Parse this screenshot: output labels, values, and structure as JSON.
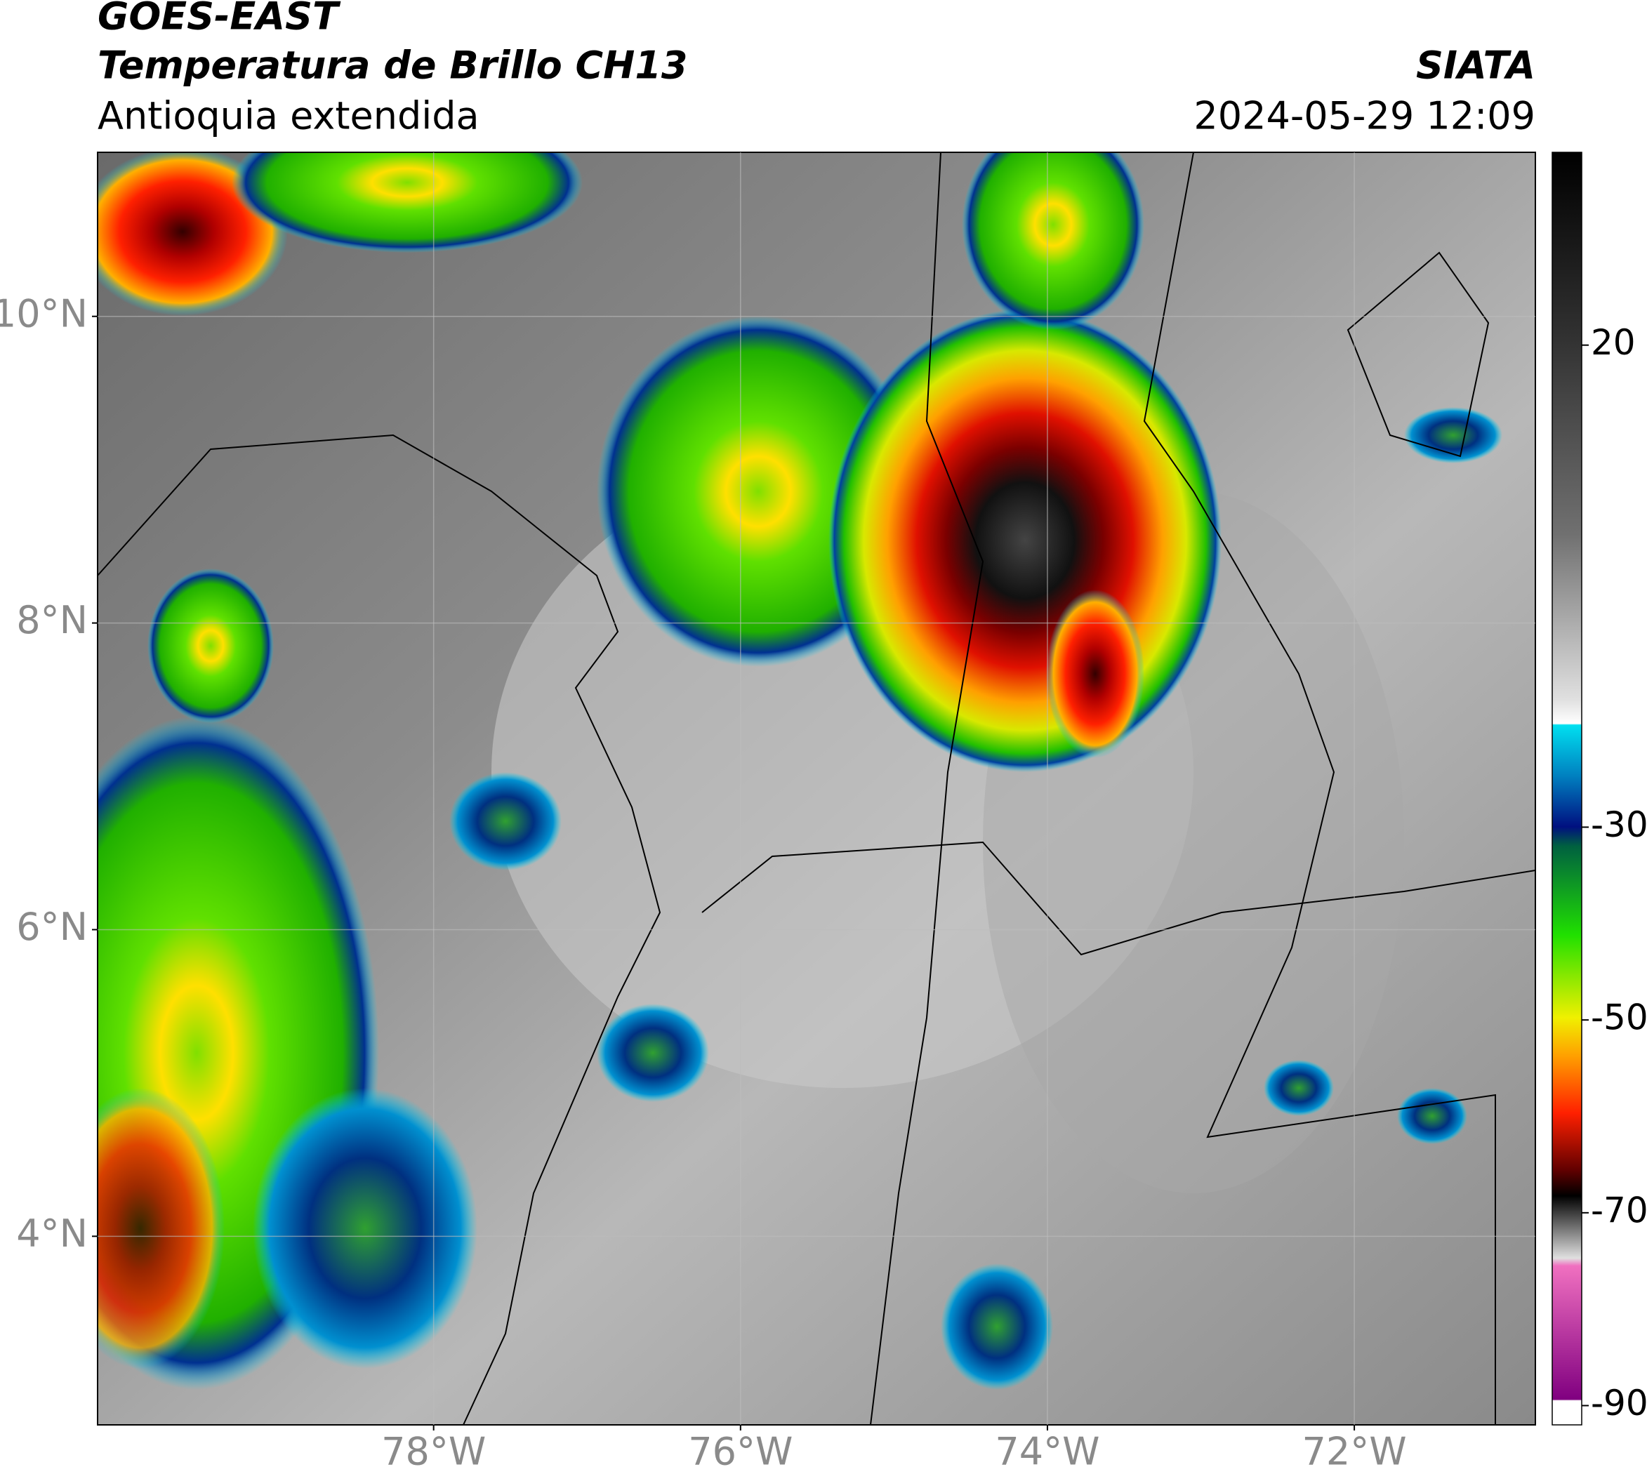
{
  "header": {
    "satellite": "GOES-EAST",
    "product": "Temperatura de Brillo CH13",
    "region": "Antioquia extendida",
    "source": "SIATA",
    "datetime": "2024-05-29 12:09"
  },
  "map": {
    "lonlim": [
      -80.19,
      -70.82
    ],
    "latlim": [
      2.77,
      11.07
    ],
    "grid": true,
    "lonticks": [
      {
        "value": -78,
        "label": "78°W"
      },
      {
        "value": -76,
        "label": "76°W"
      },
      {
        "value": -74,
        "label": "74°W"
      },
      {
        "value": -72,
        "label": "72°W"
      }
    ],
    "latticks": [
      {
        "value": 10,
        "label": "10°N"
      },
      {
        "value": 8,
        "label": "8°N"
      },
      {
        "value": 6,
        "label": "6°N"
      },
      {
        "value": 4,
        "label": "4°N"
      }
    ]
  },
  "colorbar": {
    "lim": [
      -92,
      40
    ],
    "ticks": [
      20,
      -30,
      -50,
      -70,
      -90
    ]
  }
}
